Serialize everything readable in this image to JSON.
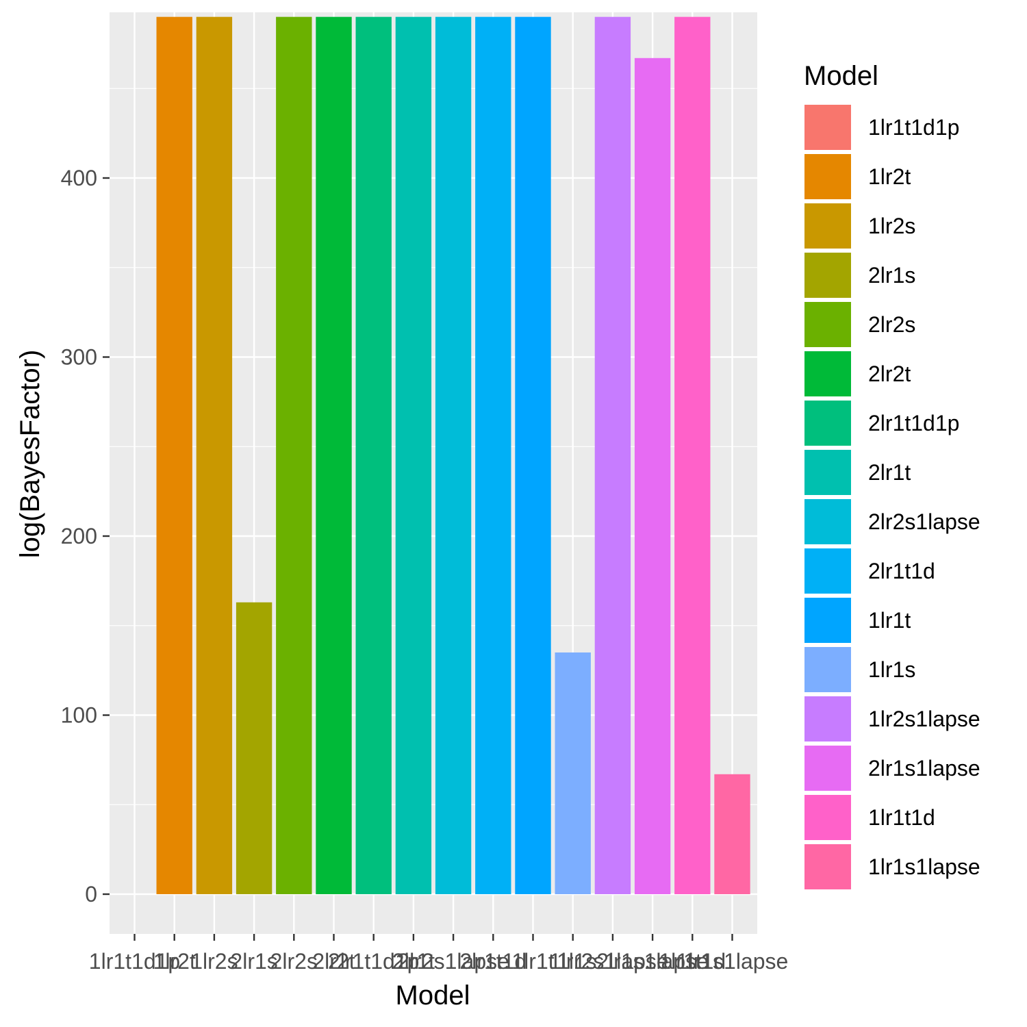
{
  "chart_data": {
    "type": "bar",
    "xlabel": "Model",
    "ylabel": "log(BayesFactor)",
    "ylim": [
      -22,
      490
    ],
    "yticks": [
      0,
      100,
      200,
      300,
      400
    ],
    "grid": true,
    "legend_position": "right",
    "legend_title": "Model",
    "categories": [
      "1lr1t1d1p",
      "1lr2t",
      "1lr2s",
      "2lr1s",
      "2lr2s",
      "2lr2t",
      "2lr1t1d1p",
      "2lr1t",
      "2lr2s1lapse",
      "2lr1t1d",
      "1lr1t",
      "1lr1s",
      "1lr2s1lapse",
      "2lr1s1lapse",
      "1lr1t1d",
      "1lr1s1lapse"
    ],
    "values": [
      0,
      490,
      490,
      163,
      490,
      490,
      490,
      490,
      490,
      490,
      490,
      135,
      490,
      467,
      490,
      67
    ],
    "colors": [
      "#F8766D",
      "#E58700",
      "#C99800",
      "#A3A500",
      "#6BB100",
      "#00BA38",
      "#00BF7D",
      "#00C0AF",
      "#00BCD8",
      "#00B0F6",
      "#00A5FF",
      "#7CAEFF",
      "#C77CFF",
      "#E76BF3",
      "#FF61C9",
      "#FF67A4"
    ]
  }
}
